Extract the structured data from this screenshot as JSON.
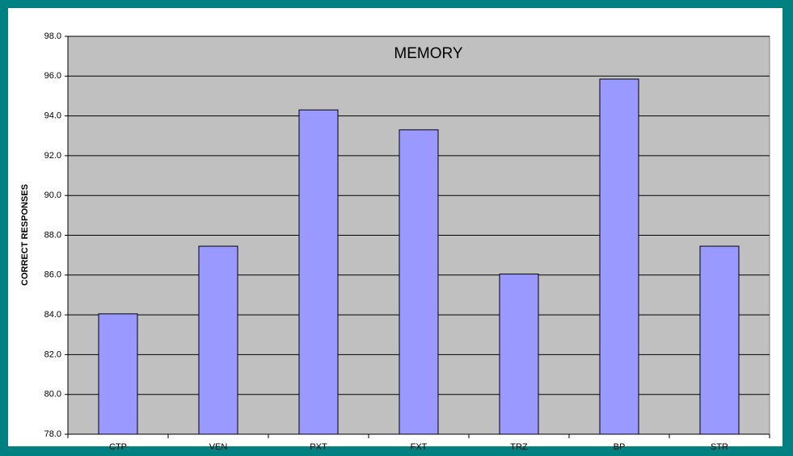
{
  "chart_data": {
    "type": "bar",
    "title": "MEMORY",
    "y_label": "CORRECT RESPONSES",
    "categories": [
      "CTP",
      "VEN",
      "PXT",
      "FXT",
      "TRZ",
      "BP",
      "STR"
    ],
    "values": [
      84.05,
      87.45,
      94.3,
      93.3,
      86.05,
      95.85,
      87.45
    ],
    "color": "#9999ff",
    "ylim": [
      78,
      98
    ],
    "yticks": [
      {
        "value": 78,
        "label": "78.0"
      },
      {
        "value": 80,
        "label": "80.0"
      },
      {
        "value": 82,
        "label": "82.0"
      },
      {
        "value": 84,
        "label": "84.0"
      },
      {
        "value": 86,
        "label": "86.0"
      },
      {
        "value": 88,
        "label": "88.0"
      },
      {
        "value": 90,
        "label": "90.0"
      },
      {
        "value": 92,
        "label": "92.0"
      },
      {
        "value": 94,
        "label": "94.0"
      },
      {
        "value": 96,
        "label": "96.0"
      },
      {
        "value": 98,
        "label": "98.0"
      }
    ],
    "grid": true
  }
}
